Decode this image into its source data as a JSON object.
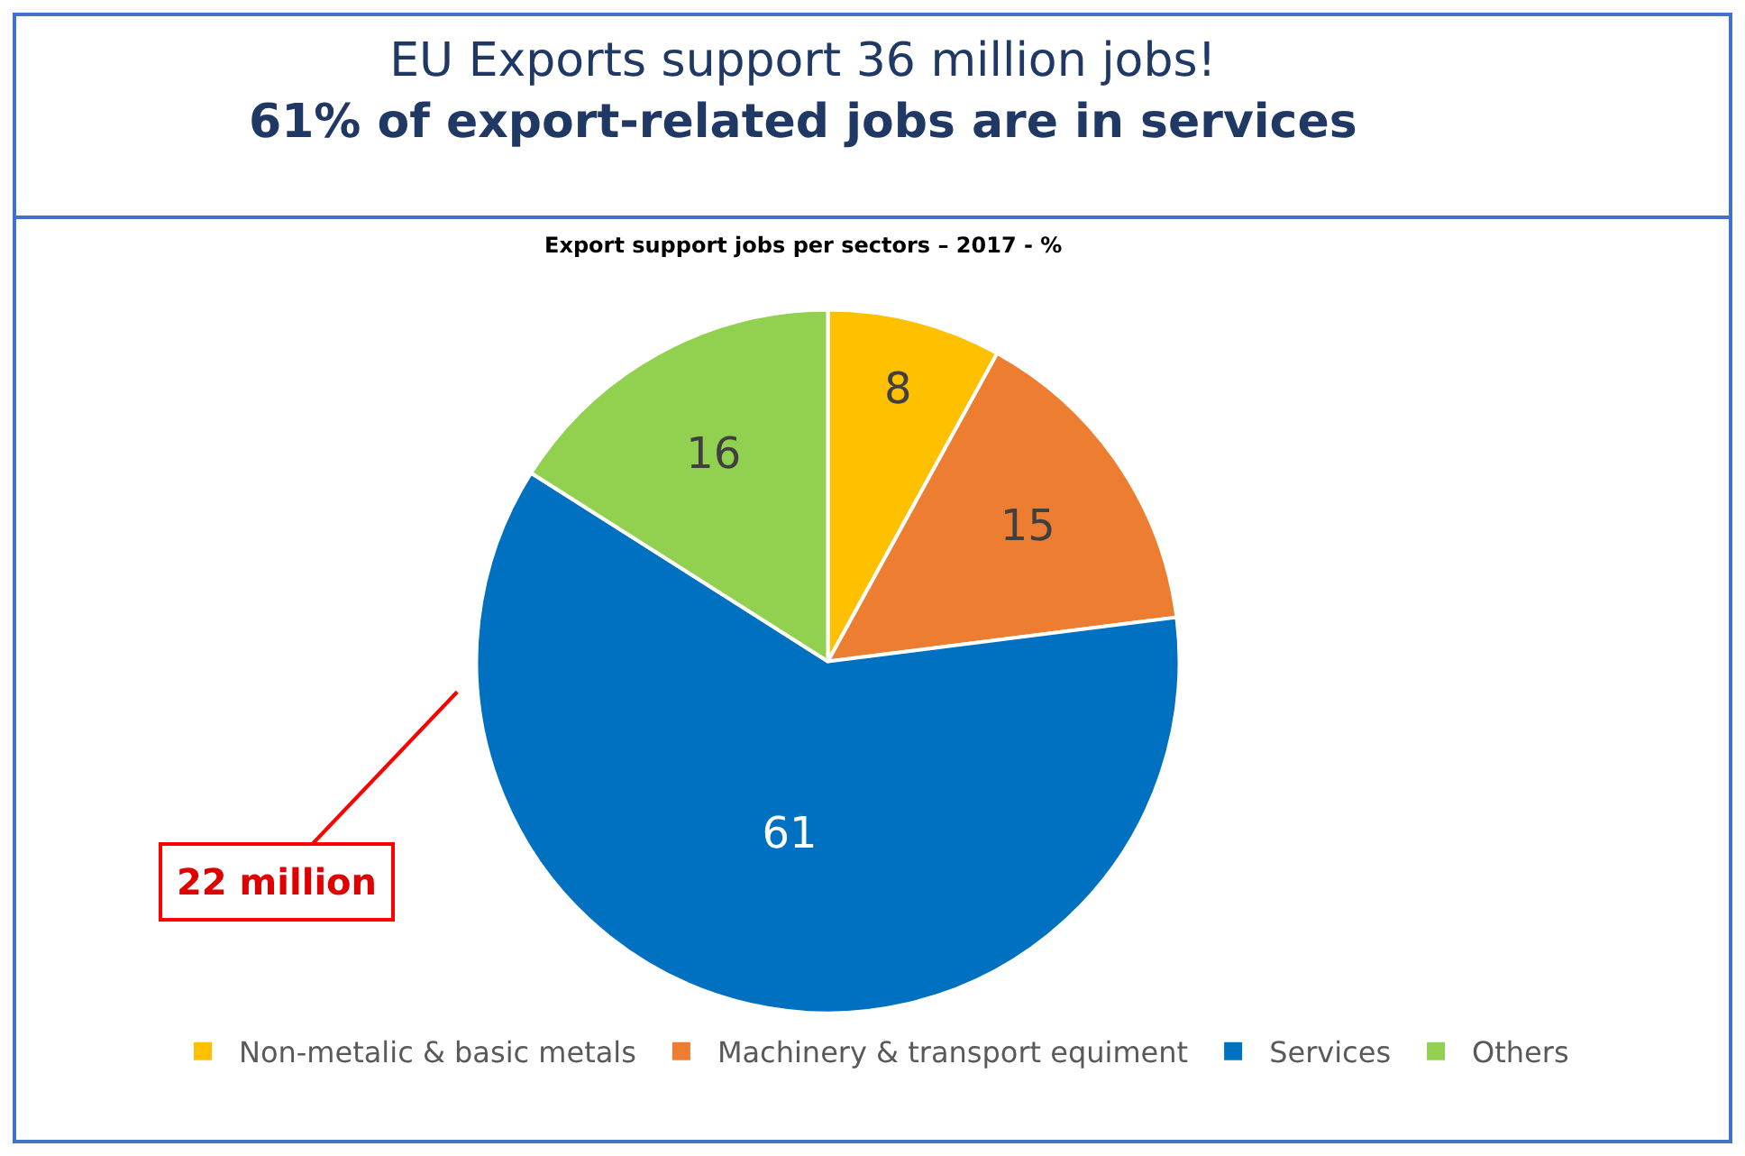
{
  "chart_data": {
    "type": "pie",
    "title": "EU Exports support 36 million jobs!\n61% of export-related jobs are in services",
    "subtitle": "Export support jobs per sectors – 2017 - %",
    "categories": [
      "Non-metalic & basic metals",
      "Machinery & transport equiment",
      "Services",
      "Others"
    ],
    "values": [
      8,
      15,
      61,
      16
    ],
    "colors": [
      "#ffc000",
      "#ed7d31",
      "#0070c0",
      "#92d050"
    ],
    "data_labels": true,
    "legend": "bottom",
    "annotations": [
      "22 million"
    ]
  }
}
